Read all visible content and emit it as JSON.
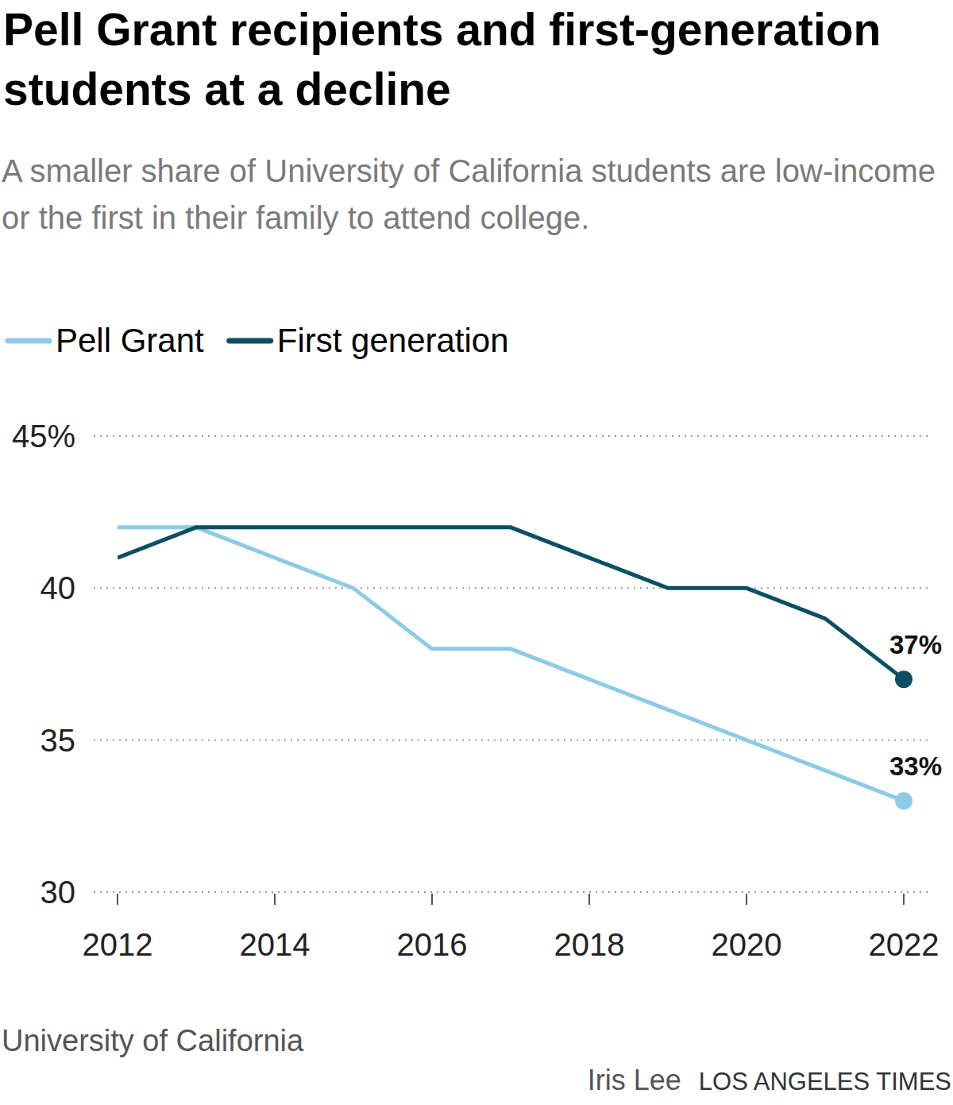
{
  "chart_data": {
    "type": "line",
    "title": "Pell Grant recipients and first-generation students at a decline",
    "subtitle": "A smaller share of University of California students are low-income or the first in their family to attend college.",
    "source": "University of California",
    "credit": "Iris Lee",
    "publisher": "LOS ANGELES TIMES",
    "x": [
      2012,
      2013,
      2014,
      2015,
      2016,
      2017,
      2018,
      2019,
      2020,
      2021,
      2022
    ],
    "series": [
      {
        "name": "Pell Grant",
        "color": "#8ccbe6",
        "marker": "circle",
        "values": [
          42,
          42,
          41,
          40,
          38,
          38,
          37,
          36,
          35,
          34,
          33
        ],
        "value_labels": [
          null,
          null,
          null,
          null,
          null,
          null,
          null,
          null,
          null,
          null,
          "33%"
        ]
      },
      {
        "name": "First generation",
        "color": "#0b4f63",
        "marker": "circle",
        "values": [
          41,
          42,
          42,
          42,
          42,
          42,
          41,
          40,
          40,
          39,
          37
        ],
        "value_labels": [
          null,
          null,
          null,
          null,
          null,
          null,
          null,
          null,
          null,
          null,
          "37%"
        ]
      }
    ],
    "xlim": [
      2012,
      2022
    ],
    "xticks": [
      2012,
      2014,
      2016,
      2018,
      2020,
      2022
    ],
    "ylim": [
      30,
      45
    ],
    "yticks": [
      30,
      35,
      40,
      {
        "value": 45,
        "label": "45%"
      }
    ],
    "grid": true,
    "legend": "top-left"
  }
}
